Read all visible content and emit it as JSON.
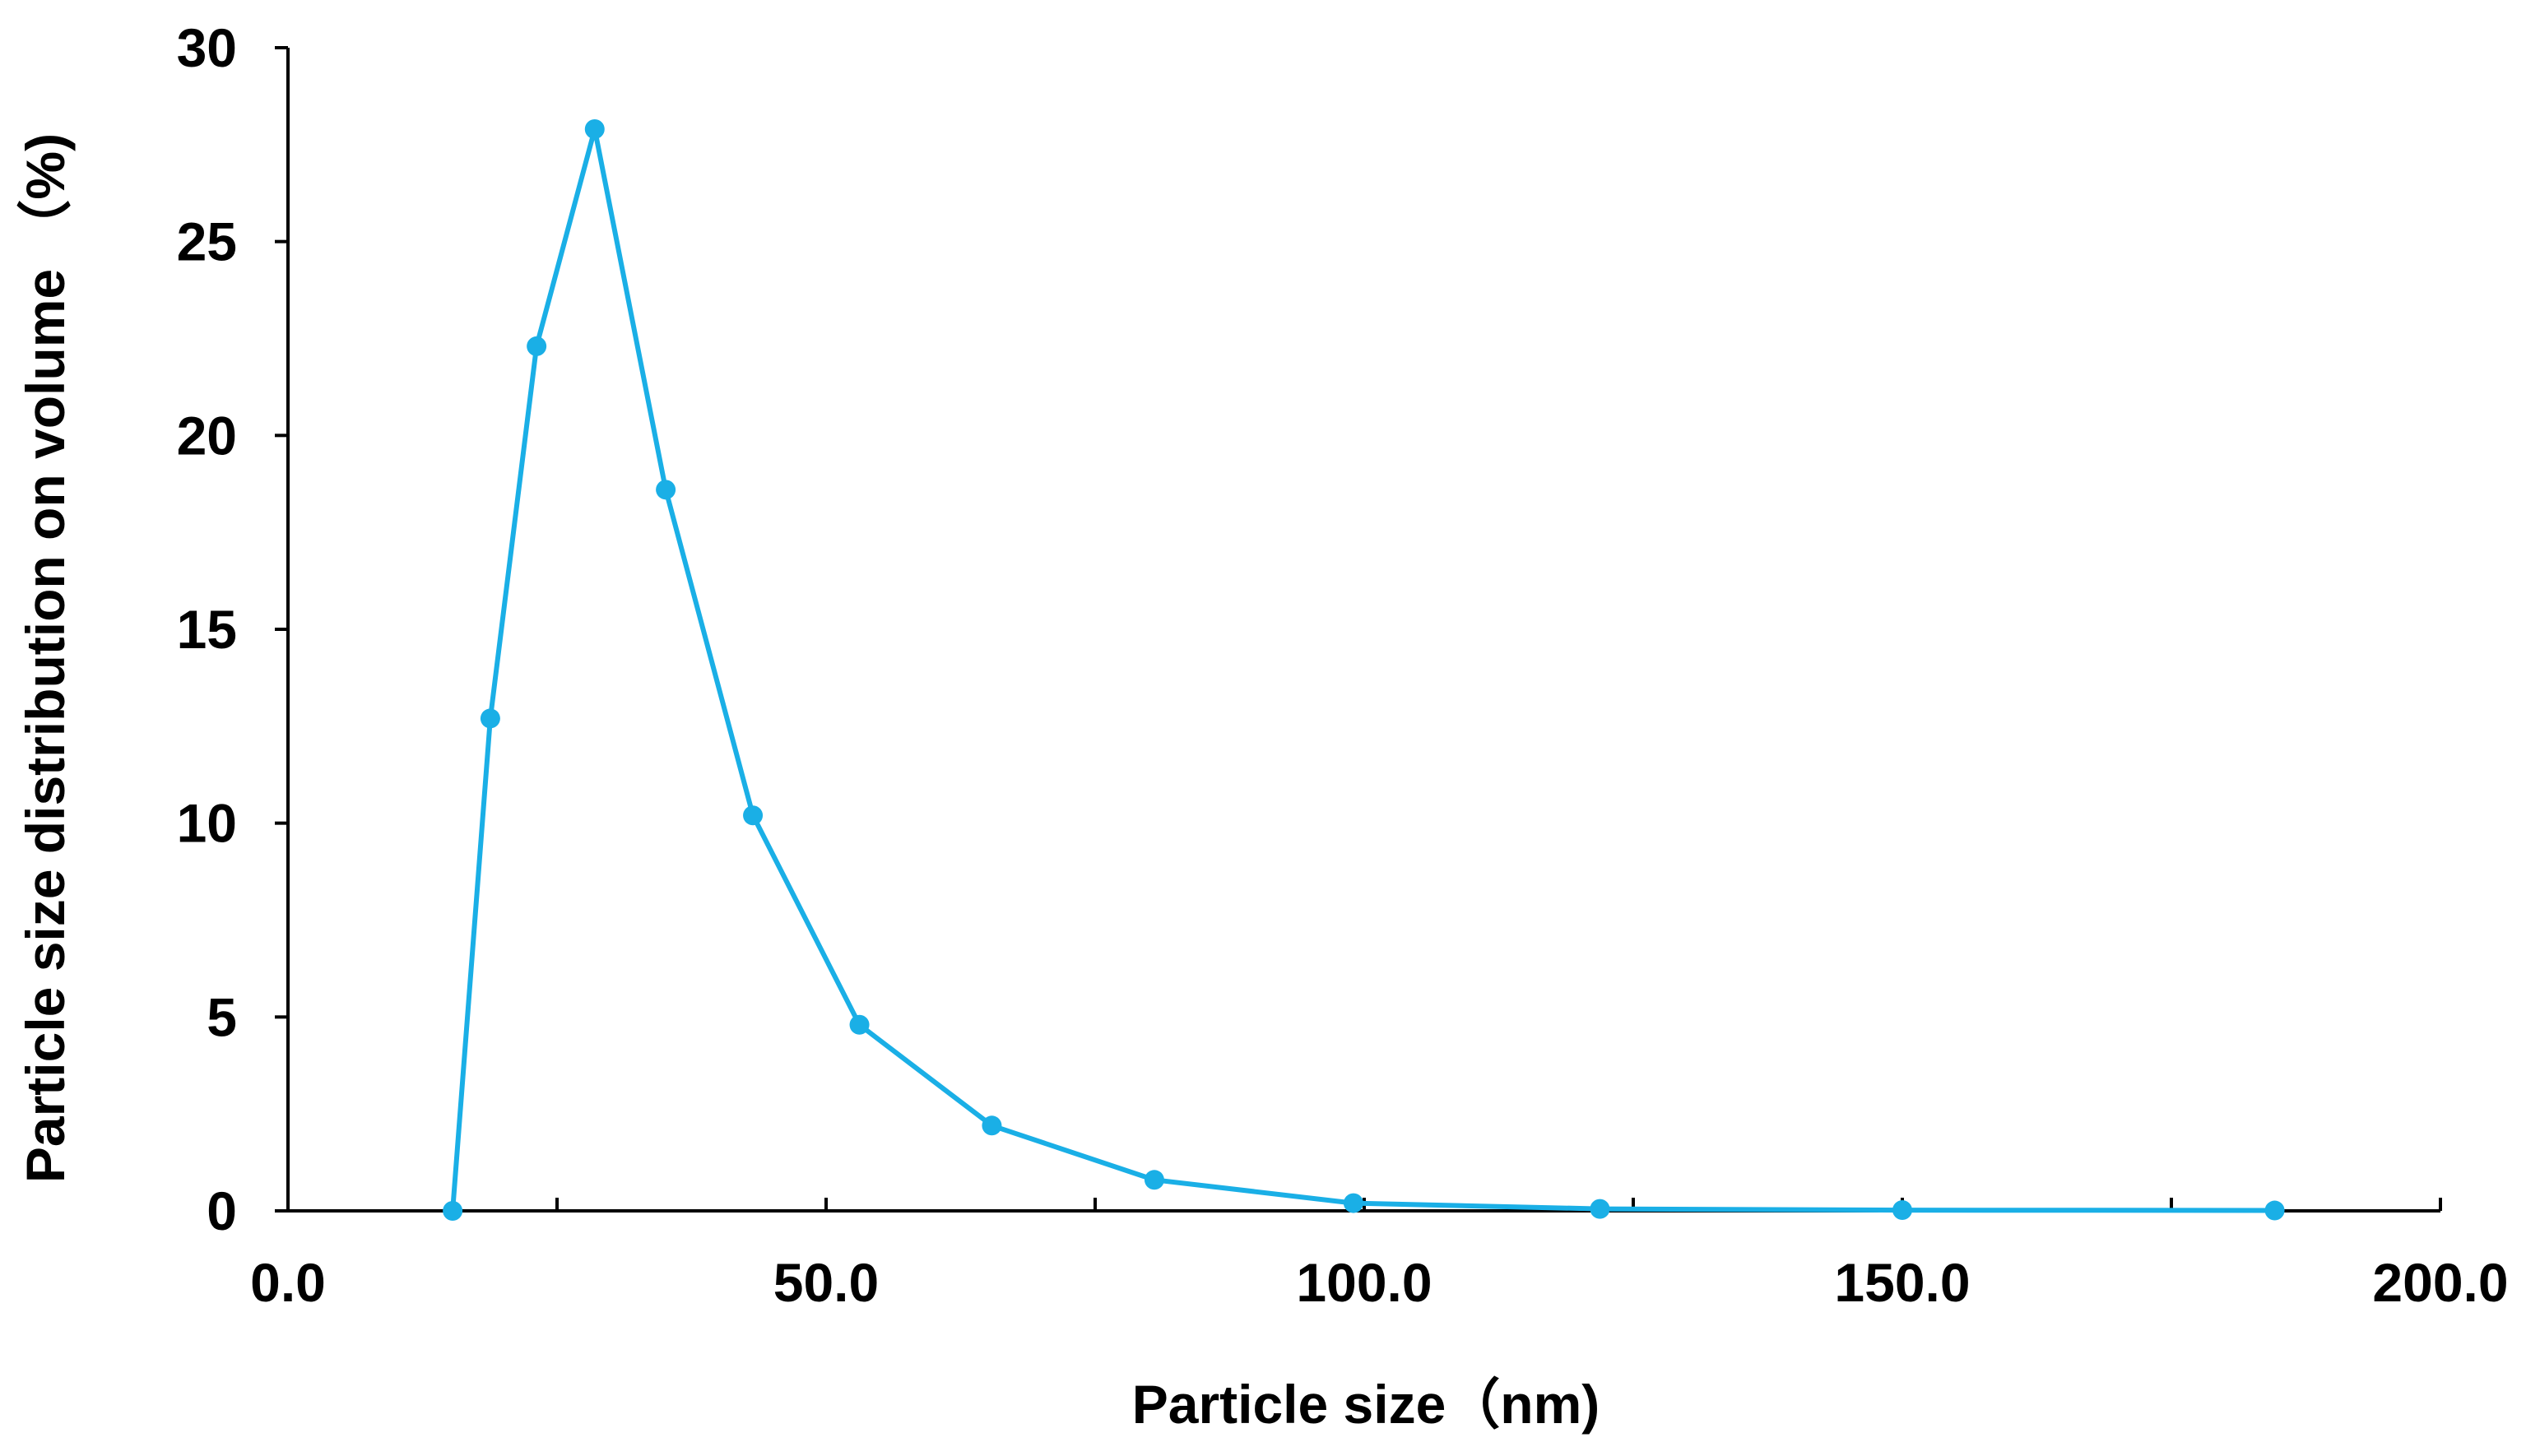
{
  "chart_data": {
    "type": "line",
    "title": "",
    "xlabel": "Particle size（nm)",
    "ylabel": "Particle size distribution on volume （%)",
    "xlim": [
      0,
      200
    ],
    "ylim": [
      0,
      30
    ],
    "x_ticks": [
      "0.0",
      "50.0",
      "100.0",
      "150.0",
      "200.0"
    ],
    "x_minor_step": 25,
    "y_ticks": [
      "0",
      "5",
      "10",
      "15",
      "20",
      "25",
      "30"
    ],
    "grid": false,
    "legend": "none",
    "series": [
      {
        "color": "#1AAFE6",
        "marker": "circle",
        "x": [
          15.3,
          18.8,
          23.1,
          28.5,
          35.1,
          43.2,
          53.1,
          65.4,
          80.5,
          99.0,
          121.9,
          150.0,
          184.6
        ],
        "y": [
          0.0,
          12.7,
          22.3,
          27.9,
          18.6,
          10.2,
          4.8,
          2.2,
          0.8,
          0.2,
          0.05,
          0.02,
          0.01
        ]
      }
    ]
  }
}
